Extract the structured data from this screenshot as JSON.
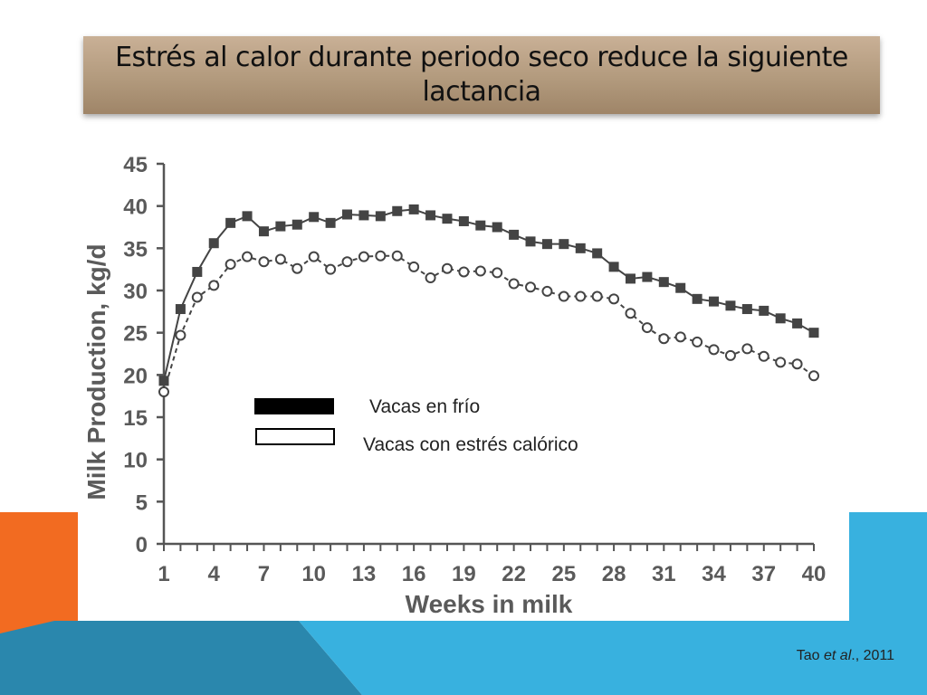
{
  "slide": {
    "title": "Estrés al calor durante periodo seco reduce la siguiente lactancia",
    "citation_pre": "Tao ",
    "citation_italic": "et al",
    "citation_post": "., 2011",
    "accent_orange": "#f26b21",
    "accent_blue": "#38b1df",
    "accent_dark_blue": "#2a87ad"
  },
  "chart_data": {
    "type": "line",
    "ylabel": "Milk Production, kg/d",
    "xlabel": "Weeks in milk",
    "xlim": [
      1,
      40
    ],
    "ylim": [
      0,
      45
    ],
    "x_ticks": [
      1,
      4,
      7,
      10,
      13,
      16,
      19,
      22,
      25,
      28,
      31,
      34,
      37,
      40
    ],
    "y_ticks": [
      0,
      5,
      10,
      15,
      20,
      25,
      30,
      35,
      40,
      45
    ],
    "legend": [
      "Vacas en frío",
      "Vacas con estrés calórico"
    ],
    "legend_placement": "center-left",
    "grid": false,
    "x": [
      1,
      2,
      3,
      4,
      5,
      6,
      7,
      8,
      9,
      10,
      11,
      12,
      13,
      14,
      15,
      16,
      17,
      18,
      19,
      20,
      21,
      22,
      23,
      24,
      25,
      26,
      27,
      28,
      29,
      30,
      31,
      32,
      33,
      34,
      35,
      36,
      37,
      38,
      39,
      40
    ],
    "series": [
      {
        "name": "Vacas en frío",
        "marker": "filled-square",
        "line": "solid",
        "color": "#444444",
        "values": [
          19.3,
          27.8,
          32.2,
          35.6,
          38.0,
          38.8,
          37.0,
          37.6,
          37.8,
          38.7,
          38.0,
          39.0,
          38.9,
          38.8,
          39.4,
          39.6,
          38.9,
          38.5,
          38.2,
          37.7,
          37.5,
          36.6,
          35.8,
          35.5,
          35.5,
          35.0,
          34.4,
          32.8,
          31.4,
          31.6,
          31.0,
          30.3,
          29.0,
          28.7,
          28.2,
          27.8,
          27.6,
          26.7,
          26.1,
          25.0
        ]
      },
      {
        "name": "Vacas con estrés calórico",
        "marker": "open-circle",
        "line": "dashed",
        "color": "#444444",
        "values": [
          18.0,
          24.7,
          29.2,
          30.6,
          33.1,
          34.0,
          33.4,
          33.7,
          32.6,
          34.0,
          32.5,
          33.4,
          34.0,
          34.1,
          34.1,
          32.8,
          31.5,
          32.6,
          32.2,
          32.3,
          32.1,
          30.8,
          30.4,
          29.9,
          29.3,
          29.3,
          29.3,
          29.0,
          27.3,
          25.6,
          24.3,
          24.5,
          23.9,
          23.0,
          22.3,
          23.1,
          22.2,
          21.5,
          21.3,
          19.9
        ]
      }
    ]
  }
}
